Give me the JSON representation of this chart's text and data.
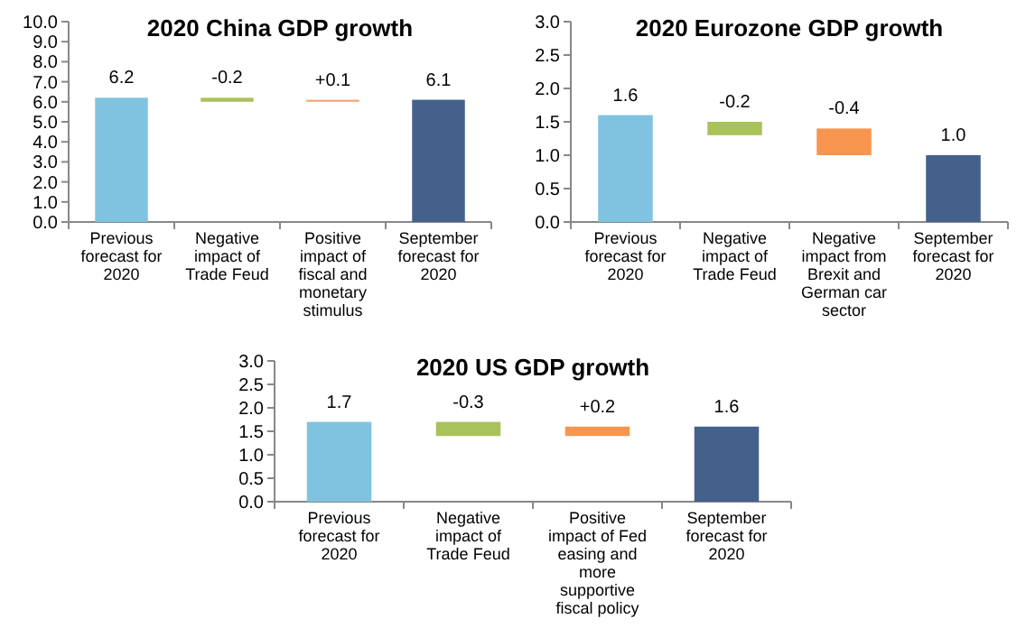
{
  "chart_data": [
    {
      "type": "bar",
      "title": "2020 China GDP growth",
      "categories": [
        "Previous forecast for 2020",
        "Negative impact of Trade Feud",
        "Positive impact of fiscal and monetary stimulus",
        "September forecast for 2020"
      ],
      "values": [
        6.2,
        -0.2,
        0.1,
        6.1
      ],
      "base": [
        0,
        6.2,
        6.0,
        0
      ],
      "colors": [
        "#7fc3e0",
        "#a9c25a",
        "#f4a57a",
        "#44618c"
      ],
      "value_labels": [
        "6.2",
        "-0.2",
        "+0.1",
        "6.1"
      ],
      "ylim": [
        0,
        10
      ],
      "yticks": [
        {
          "value": 0,
          "label": "0.0"
        },
        {
          "value": 1,
          "label": "1.0"
        },
        {
          "value": 2,
          "label": "2.0"
        },
        {
          "value": 3,
          "label": "3.0"
        },
        {
          "value": 4,
          "label": "4.0"
        },
        {
          "value": 5,
          "label": "5.0"
        },
        {
          "value": 6,
          "label": "6.0"
        },
        {
          "value": 7,
          "label": "7.0"
        },
        {
          "value": 8,
          "label": "8.0"
        },
        {
          "value": 9,
          "label": "9.0"
        },
        {
          "value": 10,
          "label": "10.0"
        }
      ]
    },
    {
      "type": "bar",
      "title": "2020 Eurozone GDP growth",
      "categories": [
        "Previous forecast for 2020",
        "Negative impact of Trade Feud",
        "Negative impact from Brexit and German car sector",
        "September forecast for 2020"
      ],
      "values": [
        1.6,
        -0.2,
        -0.4,
        1.0
      ],
      "base": [
        0,
        1.5,
        1.4,
        0
      ],
      "colors": [
        "#7fc3e0",
        "#a9c25a",
        "#f7954f",
        "#44618c"
      ],
      "value_labels": [
        "1.6",
        "-0.2",
        "-0.4",
        "1.0"
      ],
      "ylim": [
        0,
        3
      ],
      "yticks": [
        {
          "value": 0,
          "label": "0.0"
        },
        {
          "value": 0.5,
          "label": "0.5"
        },
        {
          "value": 1,
          "label": "1.0"
        },
        {
          "value": 1.5,
          "label": "1.5"
        },
        {
          "value": 2,
          "label": "2.0"
        },
        {
          "value": 2.5,
          "label": "2.5"
        },
        {
          "value": 3,
          "label": "3.0"
        }
      ]
    },
    {
      "type": "bar",
      "title": "2020 US GDP growth",
      "categories": [
        "Previous forecast for 2020",
        "Negative impact of Trade Feud",
        "Positive impact of Fed easing and more supportive fiscal policy",
        "September forecast for 2020"
      ],
      "values": [
        1.7,
        -0.3,
        0.2,
        1.6
      ],
      "base": [
        0,
        1.7,
        1.4,
        0
      ],
      "colors": [
        "#7fc3e0",
        "#a9c25a",
        "#f7954f",
        "#44618c"
      ],
      "value_labels": [
        "1.7",
        "-0.3",
        "+0.2",
        "1.6"
      ],
      "ylim": [
        0,
        3
      ],
      "yticks": [
        {
          "value": 0,
          "label": "0.0"
        },
        {
          "value": 0.5,
          "label": "0.5"
        },
        {
          "value": 1,
          "label": "1.0"
        },
        {
          "value": 1.5,
          "label": "1.5"
        },
        {
          "value": 2,
          "label": "2.0"
        },
        {
          "value": 2.5,
          "label": "2.5"
        },
        {
          "value": 3,
          "label": "3.0"
        }
      ]
    }
  ]
}
